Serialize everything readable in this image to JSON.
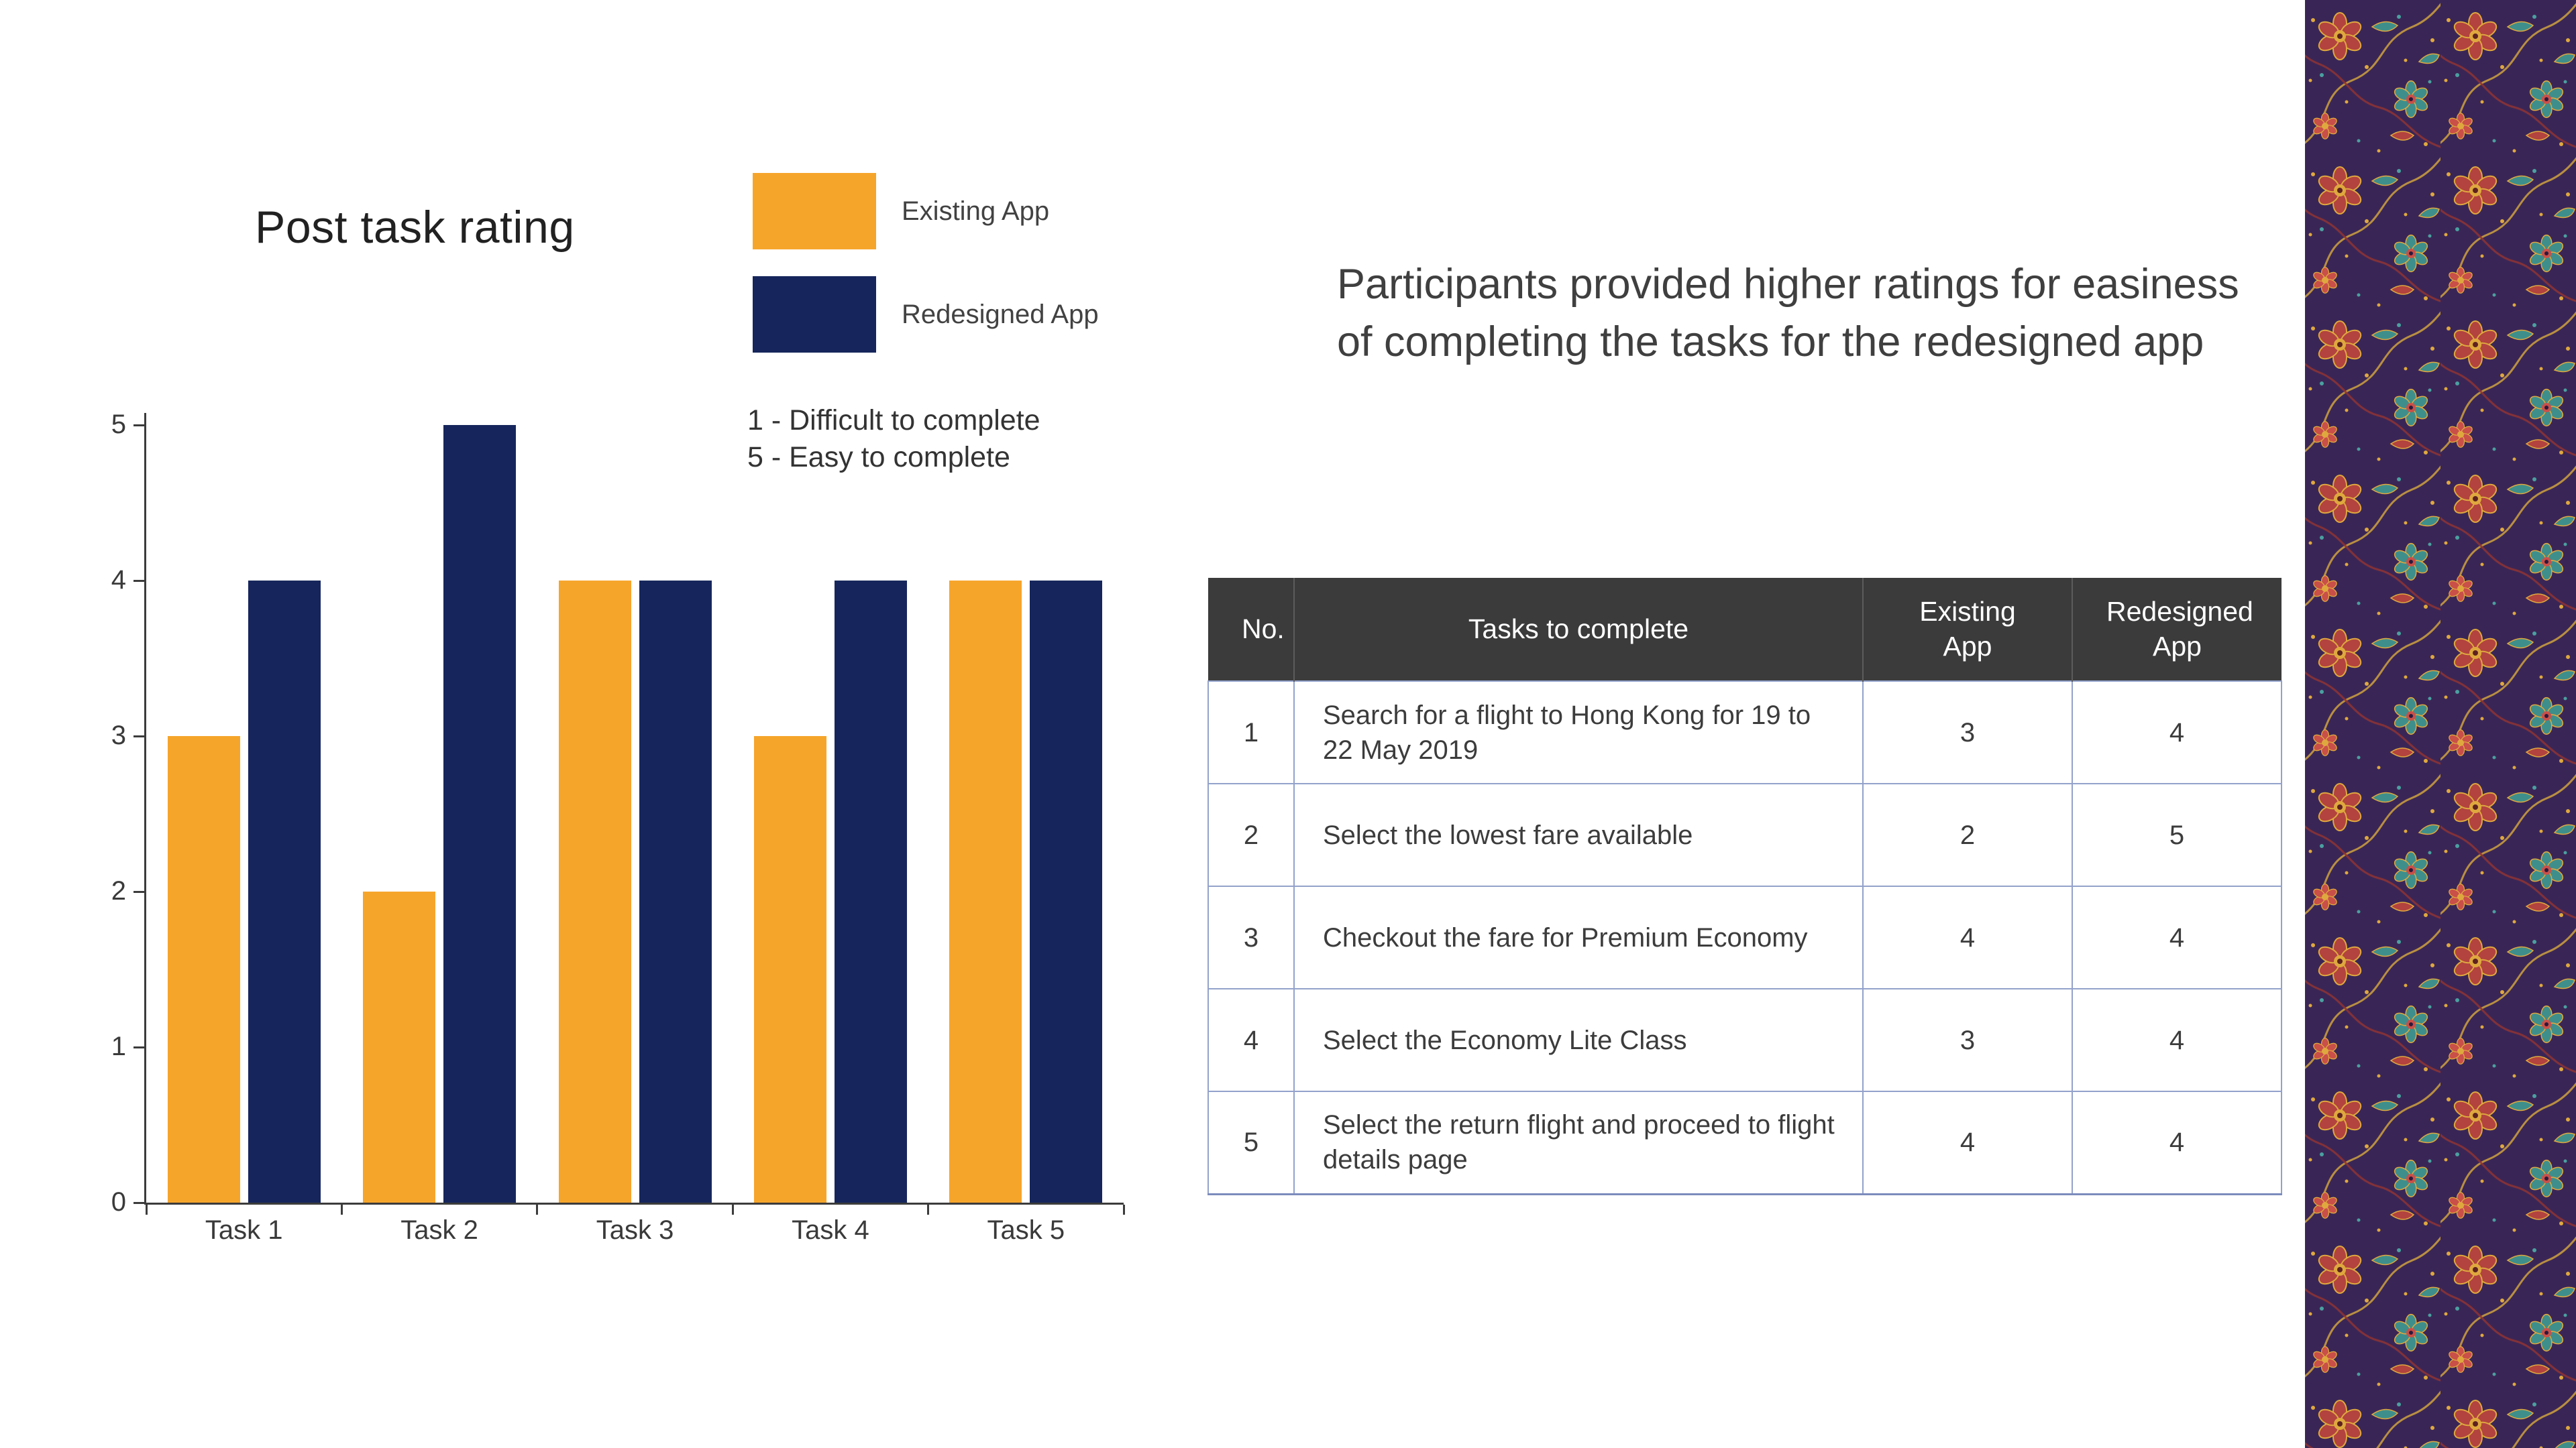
{
  "chart_data": {
    "type": "bar",
    "title": "Post task rating",
    "categories": [
      "Task 1",
      "Task 2",
      "Task 3",
      "Task 4",
      "Task 5"
    ],
    "series": [
      {
        "name": "Existing App",
        "color": "#F6A52B",
        "values": [
          3,
          2,
          4,
          3,
          4
        ]
      },
      {
        "name": "Redesigned App",
        "color": "#16265C",
        "values": [
          4,
          5,
          4,
          4,
          4
        ]
      }
    ],
    "ylim": [
      0,
      5
    ],
    "yticks": [
      0,
      1,
      2,
      3,
      4,
      5
    ],
    "xlabel": "",
    "ylabel": "",
    "grid": false,
    "legend_position": "top-right",
    "annotations": [
      "1 - Difficult to complete",
      "5 - Easy to complete"
    ]
  },
  "headline": "Participants provided higher ratings for easiness of completing the tasks for the redesigned app",
  "table": {
    "headers": [
      "No.",
      "Tasks to complete",
      "Existing App",
      "Redesigned App"
    ],
    "header_bg": "#3B3B3B",
    "border_color": "#93A2CB",
    "rows": [
      {
        "no": "1",
        "task": "Search for a flight to Hong Kong for 19 to 22 May 2019",
        "existing": "3",
        "redesigned": "4"
      },
      {
        "no": "2",
        "task": "Select the lowest fare available",
        "existing": "2",
        "redesigned": "5"
      },
      {
        "no": "3",
        "task": "Checkout the fare for Premium Economy",
        "existing": "4",
        "redesigned": "4"
      },
      {
        "no": "4",
        "task": "Select the Economy Lite Class",
        "existing": "3",
        "redesigned": "4"
      },
      {
        "no": "5",
        "task": "Select the return flight and proceed to flight details page",
        "existing": "4",
        "redesigned": "4"
      }
    ]
  },
  "decor": {
    "batik_base": "#3A2656",
    "batik_red": "#B2433E",
    "batik_teal": "#3E8F8B",
    "batik_gold": "#DFA83E"
  }
}
